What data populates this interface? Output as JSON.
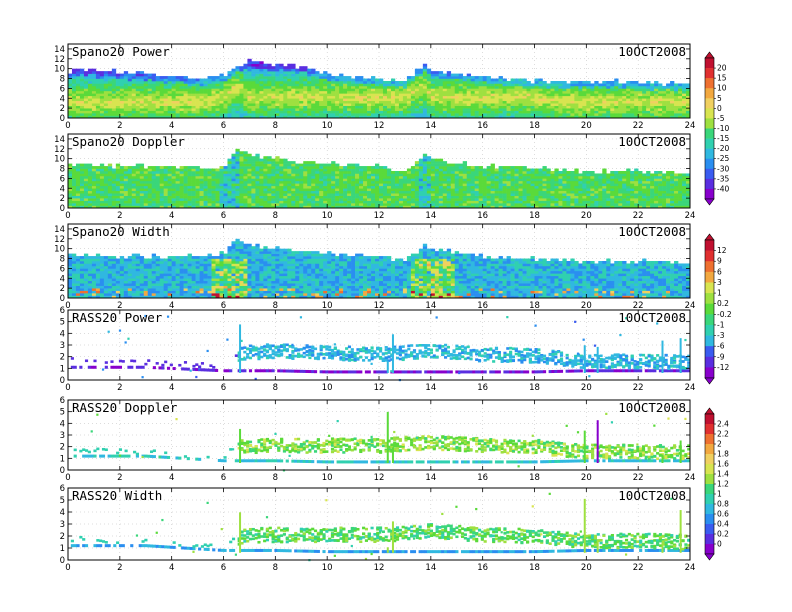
{
  "chart_data": [
    {
      "type": "heatmap",
      "title": "Spano20 Power",
      "date": "10OCT2008",
      "xlim": [
        0,
        24
      ],
      "x_ticks": [
        "0",
        "2",
        "4",
        "6",
        "8",
        "10",
        "12",
        "14",
        "16",
        "18",
        "20",
        "22",
        "24"
      ],
      "ylim": [
        0,
        15
      ],
      "y_ticks": [
        "0",
        "2",
        "4",
        "6",
        "8",
        "10",
        "12",
        "14"
      ],
      "colorbar": {
        "labels": [
          "20",
          "15",
          "10",
          "5",
          "0",
          "-5",
          "-10",
          "-15",
          "-20",
          "-25",
          "-30",
          "-35",
          "-40"
        ],
        "range": [
          -40,
          20
        ]
      },
      "data": {
        "time_hours": [
          0,
          1,
          2,
          3,
          4,
          5,
          6,
          6.5,
          7,
          8,
          9,
          10,
          11,
          12,
          13,
          13.8,
          14,
          15,
          16,
          17,
          18,
          19,
          20,
          21,
          22,
          23,
          24
        ],
        "echo_top_height": [
          9.5,
          9.8,
          9.5,
          9,
          8.5,
          8,
          8.5,
          10,
          11.5,
          11,
          10.5,
          9,
          8.5,
          8,
          7.5,
          11,
          10,
          9,
          8.5,
          8,
          7.5,
          7.5,
          7.5,
          7.5,
          7.5,
          7,
          7
        ],
        "peak_power_height": [
          3,
          3,
          3,
          3,
          3,
          3,
          4,
          6,
          4,
          4,
          4,
          4,
          4,
          4,
          4,
          6,
          4,
          4,
          4,
          4,
          4,
          3,
          3,
          3,
          3,
          3,
          3
        ]
      }
    },
    {
      "type": "heatmap",
      "title": "Spano20 Doppler",
      "date": "10OCT2008",
      "xlim": [
        0,
        24
      ],
      "x_ticks": [
        "0",
        "2",
        "4",
        "6",
        "8",
        "10",
        "12",
        "14",
        "16",
        "18",
        "20",
        "22",
        "24"
      ],
      "ylim": [
        0,
        15
      ],
      "y_ticks": [
        "0",
        "2",
        "4",
        "6",
        "8",
        "10",
        "12",
        "14"
      ],
      "data": {
        "time_hours": [
          0,
          2,
          4,
          6,
          6.5,
          7,
          8,
          10,
          12,
          13,
          13.8,
          14,
          16,
          18,
          20,
          22,
          24
        ],
        "echo_top_height": [
          9,
          8.5,
          8.5,
          8,
          12,
          11,
          10,
          9,
          8.5,
          7.5,
          11,
          10,
          8.5,
          8,
          7.5,
          7.5,
          7
        ]
      }
    },
    {
      "type": "heatmap",
      "title": "Spano20 Width",
      "date": "10OCT2008",
      "xlim": [
        0,
        24
      ],
      "x_ticks": [
        "0",
        "2",
        "4",
        "6",
        "8",
        "10",
        "12",
        "14",
        "16",
        "18",
        "20",
        "22",
        "24"
      ],
      "ylim": [
        0,
        15
      ],
      "y_ticks": [
        "0",
        "2",
        "4",
        "6",
        "8",
        "10",
        "12",
        "14"
      ],
      "colorbar": {
        "labels": [
          "12",
          "9",
          "6",
          "3",
          "1",
          "0.2",
          "-0.2",
          "-1",
          "-3",
          "-6",
          "-9",
          "-12"
        ],
        "range": [
          -12,
          12
        ]
      },
      "data": {
        "time_hours": [
          0,
          2,
          4,
          6,
          6.5,
          7,
          8,
          10,
          12,
          13,
          13.8,
          14,
          16,
          18,
          20,
          22,
          24
        ],
        "echo_top_height": [
          9,
          8.5,
          8.5,
          9,
          12,
          11,
          10,
          9,
          8.5,
          7.5,
          11,
          10,
          8.5,
          8,
          7.5,
          7.5,
          7
        ]
      }
    },
    {
      "type": "heatmap",
      "title": "RASS20 Power",
      "date": "10OCT2008",
      "xlim": [
        0,
        24
      ],
      "x_ticks": [
        "0",
        "2",
        "4",
        "6",
        "8",
        "10",
        "12",
        "14",
        "16",
        "18",
        "20",
        "22",
        "24"
      ],
      "ylim": [
        0,
        6
      ],
      "y_ticks": [
        "0",
        "1",
        "2",
        "3",
        "4",
        "5",
        "6"
      ],
      "data": {
        "time_hours": [
          0,
          3,
          6,
          6.7,
          8,
          10,
          12,
          14,
          16,
          18,
          20,
          22,
          24
        ],
        "upper_layer_height": [
          1.8,
          1.5,
          1.2,
          2.5,
          2.7,
          2.5,
          2.4,
          2.7,
          2.4,
          2.3,
          1.8,
          1.8,
          1.7
        ],
        "lower_layer_height": [
          1.1,
          1.1,
          0.8,
          0.8,
          0.8,
          0.7,
          0.7,
          0.7,
          0.7,
          0.7,
          0.8,
          0.8,
          0.8
        ]
      }
    },
    {
      "type": "heatmap",
      "title": "RASS20 Doppler",
      "date": "10OCT2008",
      "xlim": [
        0,
        24
      ],
      "x_ticks": [
        "0",
        "2",
        "4",
        "6",
        "8",
        "10",
        "12",
        "14",
        "16",
        "18",
        "20",
        "22",
        "24"
      ],
      "ylim": [
        0,
        6
      ],
      "y_ticks": [
        "0",
        "1",
        "2",
        "3",
        "4",
        "5",
        "6"
      ],
      "colorbar": {
        "labels": [
          "2.4",
          "2.2",
          "2",
          "1.8",
          "1.6",
          "1.4",
          "1.2",
          "1",
          "0.8",
          "0.6",
          "0.4",
          "0.2",
          "0"
        ],
        "range": [
          0,
          2.4
        ]
      },
      "data": {
        "time_hours": [
          0,
          3,
          6,
          6.7,
          8,
          10,
          12,
          14,
          16,
          18,
          20,
          22,
          24
        ],
        "upper_layer_height": [
          1.8,
          1.5,
          1.2,
          2.2,
          2.3,
          2.3,
          2.3,
          2.6,
          2.3,
          2.2,
          1.8,
          1.8,
          1.7
        ],
        "lower_layer_height": [
          1.2,
          1.2,
          0.8,
          0.8,
          0.8,
          0.7,
          0.7,
          0.7,
          0.7,
          0.7,
          0.8,
          0.8,
          0.8
        ]
      }
    },
    {
      "type": "heatmap",
      "title": "RASS20 Width",
      "date": "10OCT2008",
      "xlim": [
        0,
        24
      ],
      "x_ticks": [
        "0",
        "2",
        "4",
        "6",
        "8",
        "10",
        "12",
        "14",
        "16",
        "18",
        "20",
        "22",
        "24"
      ],
      "ylim": [
        0,
        6
      ],
      "y_ticks": [
        "0",
        "1",
        "2",
        "3",
        "4",
        "5",
        "6"
      ],
      "data": {
        "time_hours": [
          0,
          3,
          6,
          6.7,
          8,
          10,
          12,
          14,
          16,
          18,
          20,
          22,
          24
        ],
        "upper_layer_height": [
          1.8,
          1.5,
          1.2,
          2.2,
          2.3,
          2.3,
          2.3,
          2.6,
          2.3,
          2.2,
          1.8,
          1.8,
          1.7
        ],
        "lower_layer_height": [
          1.2,
          1.2,
          0.8,
          0.8,
          0.8,
          0.7,
          0.7,
          0.7,
          0.7,
          0.7,
          0.8,
          0.8,
          0.8
        ]
      }
    }
  ],
  "colors": {
    "scale": [
      "#8800cc",
      "#5a2ee0",
      "#3a5cf0",
      "#2a8ef0",
      "#30b8e0",
      "#30d0b0",
      "#3ad67a",
      "#5ada3a",
      "#9ee040",
      "#d8e450",
      "#f0d060",
      "#f2a840",
      "#ee7030",
      "#e03030",
      "#c01030"
    ]
  }
}
